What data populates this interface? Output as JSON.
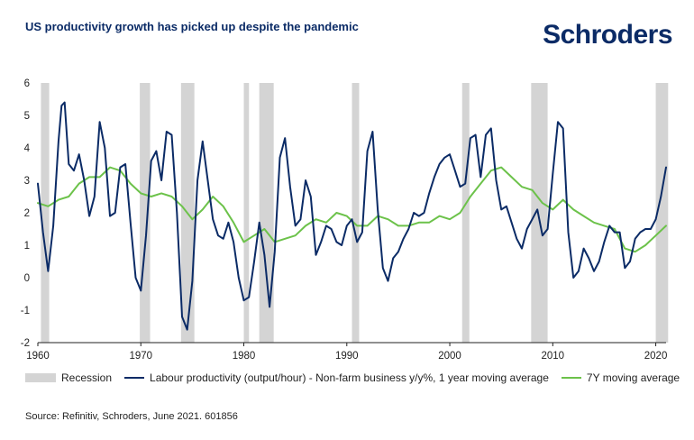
{
  "header": {
    "title": "US productivity growth has picked up despite the pandemic",
    "brand": "Schroders"
  },
  "legend": {
    "recession": "Recession",
    "productivity": "Labour productivity (output/hour) - Non-farm business y/y%, 1 year moving average",
    "moving_avg": "7Y moving average"
  },
  "source": "Source: Refinitiv, Schroders, June 2021. 601856",
  "colors": {
    "productivity": "#0b2b66",
    "moving_avg": "#6cc24a",
    "recession": "#d4d4d4",
    "axis": "#222222"
  },
  "chart_data": {
    "type": "line",
    "title": "US productivity growth has picked up despite the pandemic",
    "xlim": [
      1960,
      2021
    ],
    "ylim": [
      -2,
      6
    ],
    "x_ticks": [
      1960,
      1970,
      1980,
      1990,
      2000,
      2010,
      2020
    ],
    "y_ticks": [
      -2,
      -1,
      0,
      1,
      2,
      3,
      4,
      5,
      6
    ],
    "recessions": [
      [
        1960.3,
        1961.1
      ],
      [
        1969.9,
        1970.9
      ],
      [
        1973.9,
        1975.2
      ],
      [
        1980.0,
        1980.5
      ],
      [
        1981.5,
        1982.9
      ],
      [
        1990.5,
        1991.2
      ],
      [
        2001.2,
        2001.9
      ],
      [
        2007.9,
        2009.5
      ],
      [
        2020.0,
        2021.2
      ]
    ],
    "series": [
      {
        "name": "Labour productivity (output/hour) - Non-farm business y/y%, 1 year moving average",
        "x": [
          1960.0,
          1960.5,
          1961.0,
          1961.5,
          1962.0,
          1962.3,
          1962.6,
          1963.0,
          1963.5,
          1964.0,
          1964.5,
          1965.0,
          1965.5,
          1966.0,
          1966.5,
          1967.0,
          1967.5,
          1968.0,
          1968.5,
          1969.0,
          1969.5,
          1970.0,
          1970.5,
          1971.0,
          1971.5,
          1972.0,
          1972.5,
          1973.0,
          1973.5,
          1974.0,
          1974.5,
          1975.0,
          1975.5,
          1976.0,
          1976.5,
          1977.0,
          1977.5,
          1978.0,
          1978.5,
          1979.0,
          1979.5,
          1980.0,
          1980.5,
          1981.0,
          1981.5,
          1982.0,
          1982.5,
          1983.0,
          1983.5,
          1984.0,
          1984.5,
          1985.0,
          1985.5,
          1986.0,
          1986.5,
          1987.0,
          1987.5,
          1988.0,
          1988.5,
          1989.0,
          1989.5,
          1990.0,
          1990.5,
          1991.0,
          1991.5,
          1992.0,
          1992.5,
          1993.0,
          1993.5,
          1994.0,
          1994.5,
          1995.0,
          1995.5,
          1996.0,
          1996.5,
          1997.0,
          1997.5,
          1998.0,
          1998.5,
          1999.0,
          1999.5,
          2000.0,
          2000.5,
          2001.0,
          2001.5,
          2002.0,
          2002.5,
          2003.0,
          2003.5,
          2004.0,
          2004.5,
          2005.0,
          2005.5,
          2006.0,
          2006.5,
          2007.0,
          2007.5,
          2008.0,
          2008.5,
          2009.0,
          2009.5,
          2010.0,
          2010.5,
          2011.0,
          2011.5,
          2012.0,
          2012.5,
          2013.0,
          2013.5,
          2014.0,
          2014.5,
          2015.0,
          2015.5,
          2016.0,
          2016.5,
          2017.0,
          2017.5,
          2018.0,
          2018.5,
          2019.0,
          2019.5,
          2020.0,
          2020.5,
          2021.0
        ],
        "values": [
          2.9,
          1.4,
          0.2,
          1.6,
          4.2,
          5.3,
          5.4,
          3.5,
          3.3,
          3.8,
          3.0,
          1.9,
          2.5,
          4.8,
          4.0,
          1.9,
          2.0,
          3.4,
          3.5,
          1.7,
          0.0,
          -0.4,
          1.3,
          3.6,
          3.9,
          3.0,
          4.5,
          4.4,
          2.0,
          -1.2,
          -1.6,
          -0.1,
          3.0,
          4.2,
          3.0,
          1.8,
          1.3,
          1.2,
          1.7,
          1.1,
          0.0,
          -0.7,
          -0.6,
          0.5,
          1.7,
          0.7,
          -0.9,
          0.8,
          3.7,
          4.3,
          2.8,
          1.6,
          1.8,
          3.0,
          2.5,
          0.7,
          1.1,
          1.6,
          1.5,
          1.1,
          1.0,
          1.6,
          1.8,
          1.1,
          1.4,
          3.9,
          4.5,
          2.1,
          0.3,
          -0.1,
          0.6,
          0.8,
          1.2,
          1.5,
          2.0,
          1.9,
          2.0,
          2.6,
          3.1,
          3.5,
          3.7,
          3.8,
          3.3,
          2.8,
          2.9,
          4.3,
          4.4,
          3.1,
          4.4,
          4.6,
          3.0,
          2.1,
          2.2,
          1.7,
          1.2,
          0.9,
          1.5,
          1.8,
          2.1,
          1.3,
          1.5,
          3.2,
          4.8,
          4.6,
          1.4,
          0.0,
          0.2,
          0.9,
          0.6,
          0.2,
          0.5,
          1.1,
          1.6,
          1.4,
          1.4,
          0.3,
          0.5,
          1.2,
          1.4,
          1.5,
          1.5,
          1.8,
          2.5,
          3.4
        ]
      },
      {
        "name": "7Y moving average",
        "x": [
          1960.0,
          1961.0,
          1962.0,
          1963.0,
          1964.0,
          1965.0,
          1966.0,
          1967.0,
          1968.0,
          1969.0,
          1970.0,
          1971.0,
          1972.0,
          1973.0,
          1974.0,
          1975.0,
          1976.0,
          1977.0,
          1978.0,
          1979.0,
          1980.0,
          1981.0,
          1982.0,
          1983.0,
          1984.0,
          1985.0,
          1986.0,
          1987.0,
          1988.0,
          1989.0,
          1990.0,
          1991.0,
          1992.0,
          1993.0,
          1994.0,
          1995.0,
          1996.0,
          1997.0,
          1998.0,
          1999.0,
          2000.0,
          2001.0,
          2002.0,
          2003.0,
          2004.0,
          2005.0,
          2006.0,
          2007.0,
          2008.0,
          2009.0,
          2010.0,
          2011.0,
          2012.0,
          2013.0,
          2014.0,
          2015.0,
          2016.0,
          2017.0,
          2018.0,
          2019.0,
          2020.0,
          2021.0
        ],
        "values": [
          2.3,
          2.2,
          2.4,
          2.5,
          2.9,
          3.1,
          3.1,
          3.4,
          3.3,
          2.9,
          2.6,
          2.5,
          2.6,
          2.5,
          2.2,
          1.8,
          2.1,
          2.5,
          2.2,
          1.7,
          1.1,
          1.3,
          1.5,
          1.1,
          1.2,
          1.3,
          1.6,
          1.8,
          1.7,
          2.0,
          1.9,
          1.6,
          1.6,
          1.9,
          1.8,
          1.6,
          1.6,
          1.7,
          1.7,
          1.9,
          1.8,
          2.0,
          2.5,
          2.9,
          3.3,
          3.4,
          3.1,
          2.8,
          2.7,
          2.3,
          2.1,
          2.4,
          2.1,
          1.9,
          1.7,
          1.6,
          1.5,
          0.9,
          0.8,
          1.0,
          1.3,
          1.6
        ]
      }
    ]
  }
}
